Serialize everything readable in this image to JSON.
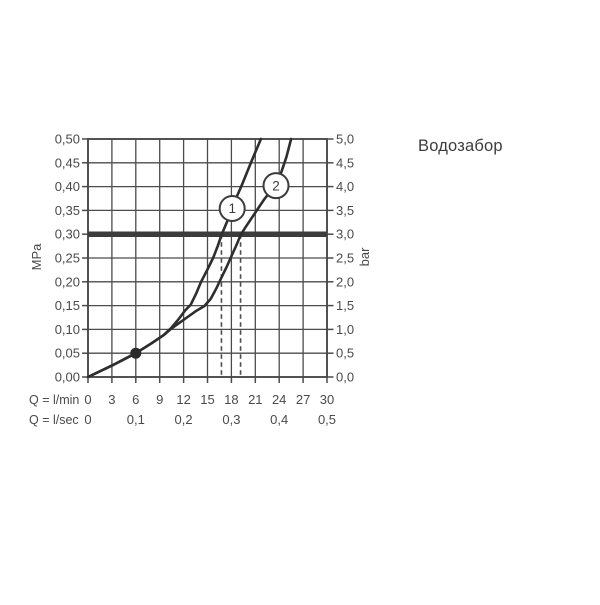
{
  "title": "Водозабор",
  "colors": {
    "background": "#ffffff",
    "grid": "#4c4c4c",
    "frame": "#454545",
    "curve": "#2e2e2e",
    "text": "#4a4a4a",
    "reference_line": "#3c3c3c",
    "marker_fill": "#ffffff",
    "dot": "#2b2b2b"
  },
  "chart_data": {
    "type": "line",
    "title": "Водозабор",
    "grid": true,
    "x_axis": {
      "primary_label": "Q = l/min",
      "primary_ticks": [
        "0",
        "3",
        "6",
        "9",
        "12",
        "15",
        "18",
        "21",
        "24",
        "27",
        "30"
      ],
      "primary_tick_positions": [
        0,
        3,
        6,
        9,
        12,
        15,
        18,
        21,
        24,
        27,
        30
      ],
      "secondary_label": "Q = l/sec",
      "secondary_ticks": [
        "0",
        "0,1",
        "0,2",
        "0,3",
        "0,4",
        "0,5"
      ],
      "secondary_tick_positions": [
        0,
        6,
        12,
        18,
        24,
        30
      ],
      "min": 0,
      "max": 30
    },
    "y_axis_left": {
      "label": "MPa",
      "ticks": [
        "0,50",
        "0,45",
        "0,40",
        "0,35",
        "0,30",
        "0,25",
        "0,20",
        "0,15",
        "0,10",
        "0,05",
        "0,00"
      ],
      "tick_values": [
        0.5,
        0.45,
        0.4,
        0.35,
        0.3,
        0.25,
        0.2,
        0.15,
        0.1,
        0.05,
        0.0
      ],
      "min": 0,
      "max": 0.5
    },
    "y_axis_right": {
      "label": "bar",
      "ticks": [
        "5,0",
        "4,5",
        "4,0",
        "3,5",
        "3,0",
        "2,5",
        "2,0",
        "1,5",
        "1,0",
        "0,5",
        "0,0"
      ],
      "tick_values": [
        5.0,
        4.5,
        4.0,
        3.5,
        3.0,
        2.5,
        2.0,
        1.5,
        1.0,
        0.5,
        0.0
      ],
      "min": 0,
      "max": 5
    },
    "reference_line_mpa": 0.3,
    "drop_lines_q_lmin": [
      16.75,
      19.15
    ],
    "operating_point": {
      "q_lmin": 6,
      "p_mpa": 0.05
    },
    "series": [
      {
        "name": "1",
        "label_at": {
          "q": 18.1,
          "p": 0.354
        },
        "points": [
          [
            0,
            0
          ],
          [
            3,
            0.024
          ],
          [
            6,
            0.05
          ],
          [
            8,
            0.071
          ],
          [
            9.5,
            0.088
          ],
          [
            10.5,
            0.104
          ],
          [
            11.4,
            0.122
          ],
          [
            12.2,
            0.14
          ],
          [
            12.9,
            0.152
          ],
          [
            13.6,
            0.176
          ],
          [
            14.2,
            0.2
          ],
          [
            15.0,
            0.226
          ],
          [
            15.7,
            0.25
          ],
          [
            16.3,
            0.276
          ],
          [
            16.8,
            0.3
          ],
          [
            17.5,
            0.328
          ],
          [
            18.1,
            0.354
          ],
          [
            18.7,
            0.38
          ],
          [
            19.4,
            0.407
          ],
          [
            20.5,
            0.452
          ],
          [
            21.7,
            0.5
          ]
        ]
      },
      {
        "name": "2",
        "label_at": {
          "q": 23.6,
          "p": 0.402
        },
        "points": [
          [
            0,
            0
          ],
          [
            3,
            0.024
          ],
          [
            6,
            0.05
          ],
          [
            8,
            0.071
          ],
          [
            9.5,
            0.088
          ],
          [
            10.5,
            0.102
          ],
          [
            11.5,
            0.114
          ],
          [
            12.5,
            0.126
          ],
          [
            13.5,
            0.138
          ],
          [
            14.6,
            0.149
          ],
          [
            15.4,
            0.164
          ],
          [
            16.1,
            0.186
          ],
          [
            16.7,
            0.207
          ],
          [
            17.4,
            0.231
          ],
          [
            17.9,
            0.25
          ],
          [
            18.6,
            0.276
          ],
          [
            19.2,
            0.3
          ],
          [
            20.1,
            0.323
          ],
          [
            21.1,
            0.348
          ],
          [
            22.1,
            0.373
          ],
          [
            23.0,
            0.392
          ],
          [
            23.6,
            0.402
          ],
          [
            24.2,
            0.427
          ],
          [
            24.9,
            0.462
          ],
          [
            25.5,
            0.5
          ]
        ]
      }
    ]
  }
}
